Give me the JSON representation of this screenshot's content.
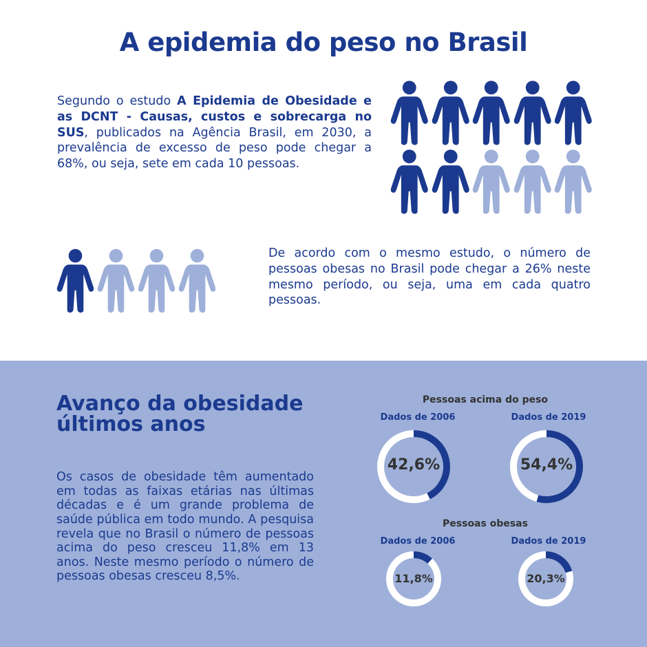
{
  "title": "A epidemia do peso no Brasil",
  "intro": {
    "pre": "Segundo o estudo ",
    "bold": "A Epidemia de Obesidade e as DCNT - Causas, custos e sobrecarga no SUS",
    "post": ", publicados na Agência Brasil, em 2030, a prevalência de excesso de peso pode chegar a 68%, ou seja, sete em cada 10 pessoas."
  },
  "obese_text": "De acordo com o mesmo estudo, o número de pessoas obesas no Brasil pode chegar a 26% neste mesmo período, ou seja, uma em cada quatro pessoas.",
  "people_overweight": {
    "total": 10,
    "highlighted": 7
  },
  "people_obese": {
    "total": 4,
    "highlighted": 1
  },
  "colors": {
    "dark_blue": "#1b3a8f",
    "light_blue": "#9eb0d9",
    "white": "#ffffff",
    "text_dark": "#333333"
  },
  "icons": {
    "person": "person-icon"
  },
  "section2": {
    "heading": "Avanço da obesidade últimos anos",
    "body": "Os casos de obesidade têm aumentado em todas as faixas etárias nas últimas décadas e é um grande problema de saúde pública em todo mundo. A pesquisa revela que no Brasil o número de pessoas acima do peso cresceu 11,8% em 13 anos. Neste mesmo período o número de pessoas obesas cresceu 8,5%."
  },
  "chart_data": [
    {
      "type": "pie",
      "title": "Pessoas acima do peso",
      "categories": [
        "Dados de 2006",
        "Dados de 2019"
      ],
      "values": [
        42.6,
        54.4
      ],
      "labels": [
        "42,6%",
        "54,4%"
      ]
    },
    {
      "type": "pie",
      "title": "Pessoas obesas",
      "categories": [
        "Dados de 2006",
        "Dados de 2019"
      ],
      "values": [
        11.8,
        20.3
      ],
      "labels": [
        "11,8%",
        "20,3%"
      ]
    }
  ]
}
